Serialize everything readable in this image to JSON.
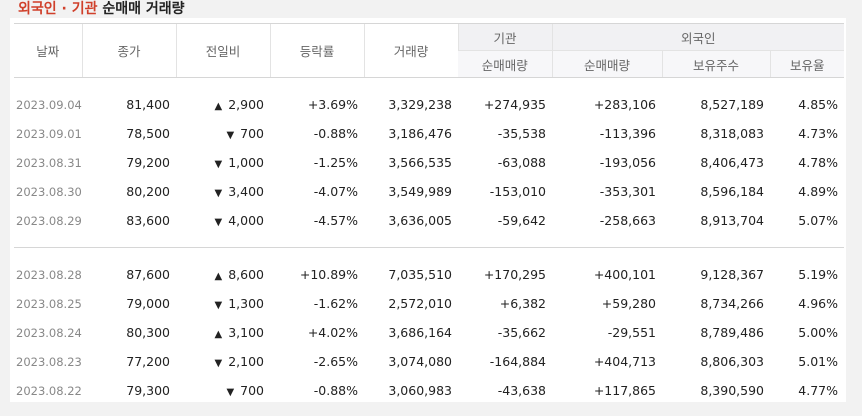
{
  "title": {
    "part1": "외국인 · 기관",
    "part2": " 순매매 거래량"
  },
  "columns": {
    "date": "날짜",
    "close": "종가",
    "change": "전일비",
    "rate": "등락률",
    "volume": "거래량",
    "inst_group": "기관",
    "inst_net": "순매매량",
    "foreign_group": "외국인",
    "foreign_net": "순매매량",
    "foreign_hold": "보유주수",
    "foreign_ratio": "보유율"
  },
  "colors": {
    "up": "#d0402b",
    "down": "#1b64c8"
  },
  "rows1": [
    {
      "date": "2023.09.04",
      "close": "81,400",
      "dir": "up",
      "change": "2,900",
      "rate": "+3.69%",
      "volume": "3,329,238",
      "inst": "+274,935",
      "foreign": "+283,106",
      "hold": "8,527,189",
      "ratio": "4.85%"
    },
    {
      "date": "2023.09.01",
      "close": "78,500",
      "dir": "down",
      "change": "700",
      "rate": "-0.88%",
      "volume": "3,186,476",
      "inst": "-35,538",
      "foreign": "-113,396",
      "hold": "8,318,083",
      "ratio": "4.73%"
    },
    {
      "date": "2023.08.31",
      "close": "79,200",
      "dir": "down",
      "change": "1,000",
      "rate": "-1.25%",
      "volume": "3,566,535",
      "inst": "-63,088",
      "foreign": "-193,056",
      "hold": "8,406,473",
      "ratio": "4.78%"
    },
    {
      "date": "2023.08.30",
      "close": "80,200",
      "dir": "down",
      "change": "3,400",
      "rate": "-4.07%",
      "volume": "3,549,989",
      "inst": "-153,010",
      "foreign": "-353,301",
      "hold": "8,596,184",
      "ratio": "4.89%"
    },
    {
      "date": "2023.08.29",
      "close": "83,600",
      "dir": "down",
      "change": "4,000",
      "rate": "-4.57%",
      "volume": "3,636,005",
      "inst": "-59,642",
      "foreign": "-258,663",
      "hold": "8,913,704",
      "ratio": "5.07%"
    }
  ],
  "rows2": [
    {
      "date": "2023.08.28",
      "close": "87,600",
      "dir": "up",
      "change": "8,600",
      "rate": "+10.89%",
      "volume": "7,035,510",
      "inst": "+170,295",
      "foreign": "+400,101",
      "hold": "9,128,367",
      "ratio": "5.19%"
    },
    {
      "date": "2023.08.25",
      "close": "79,000",
      "dir": "down",
      "change": "1,300",
      "rate": "-1.62%",
      "volume": "2,572,010",
      "inst": "+6,382",
      "foreign": "+59,280",
      "hold": "8,734,266",
      "ratio": "4.96%"
    },
    {
      "date": "2023.08.24",
      "close": "80,300",
      "dir": "up",
      "change": "3,100",
      "rate": "+4.02%",
      "volume": "3,686,164",
      "inst": "-35,662",
      "foreign": "-29,551",
      "hold": "8,789,486",
      "ratio": "5.00%"
    },
    {
      "date": "2023.08.23",
      "close": "77,200",
      "dir": "down",
      "change": "2,100",
      "rate": "-2.65%",
      "volume": "3,074,080",
      "inst": "-164,884",
      "foreign": "+404,713",
      "hold": "8,806,303",
      "ratio": "5.01%"
    },
    {
      "date": "2023.08.22",
      "close": "79,300",
      "dir": "down",
      "change": "700",
      "rate": "-0.88%",
      "volume": "3,060,983",
      "inst": "-43,638",
      "foreign": "+117,865",
      "hold": "8,390,590",
      "ratio": "4.77%"
    }
  ]
}
